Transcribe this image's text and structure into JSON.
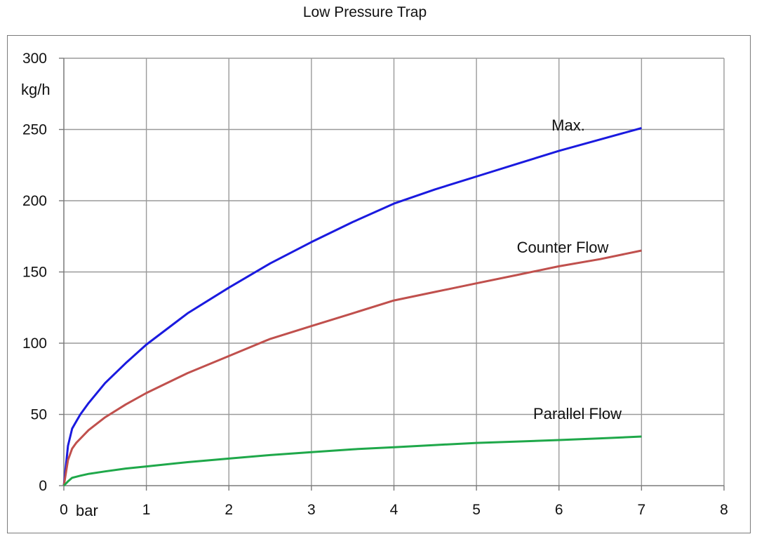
{
  "chart_data": {
    "type": "line",
    "title": "Low Pressure Trap",
    "xlabel": "bar",
    "ylabel": "kg/h",
    "xlim": [
      0,
      8
    ],
    "ylim": [
      0,
      300
    ],
    "xticks": [
      0,
      1,
      2,
      3,
      4,
      5,
      6,
      7,
      8
    ],
    "yticks": [
      0,
      50,
      100,
      150,
      200,
      250,
      300
    ],
    "grid": true,
    "legend": "inline labels",
    "series": [
      {
        "name": "Max.",
        "color": "#1a1adf",
        "x": [
          0,
          0.05,
          0.1,
          0.15,
          0.2,
          0.3,
          0.5,
          0.75,
          1,
          1.5,
          2,
          2.5,
          3,
          3.5,
          4,
          4.5,
          5,
          5.5,
          6,
          6.5,
          7
        ],
        "y": [
          0,
          28,
          40,
          45,
          50,
          58,
          72,
          86,
          99,
          121,
          139,
          156,
          171,
          185,
          198,
          208,
          217,
          226,
          235,
          243,
          251
        ]
      },
      {
        "name": "Counter Flow",
        "color": "#c0504d",
        "x": [
          0,
          0.05,
          0.1,
          0.15,
          0.2,
          0.3,
          0.5,
          0.75,
          1,
          1.5,
          2,
          2.5,
          3,
          3.5,
          4,
          4.5,
          5,
          5.5,
          6,
          6.5,
          7
        ],
        "y": [
          0,
          18,
          26,
          30,
          33,
          39,
          48,
          57,
          65,
          79,
          91,
          103,
          112,
          121,
          130,
          136,
          142,
          148,
          154,
          159,
          165
        ]
      },
      {
        "name": "Parallel Flow",
        "color": "#1fa84a",
        "x": [
          0,
          0.05,
          0.1,
          0.2,
          0.3,
          0.5,
          0.75,
          1,
          1.5,
          2,
          2.5,
          3,
          3.5,
          4,
          4.5,
          5,
          5.5,
          6,
          6.5,
          7
        ],
        "y": [
          0,
          3,
          5.5,
          7,
          8.3,
          10,
          12,
          13.5,
          16.5,
          19,
          21.5,
          23.5,
          25.5,
          27,
          28.5,
          30,
          31,
          32,
          33.2,
          34.5
        ]
      }
    ]
  }
}
